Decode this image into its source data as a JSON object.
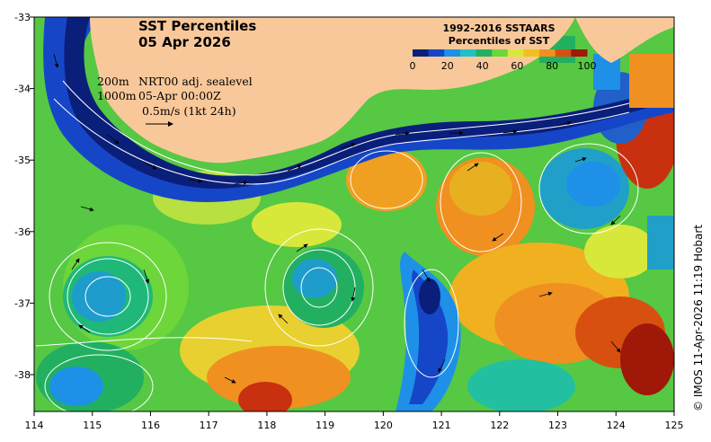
{
  "map": {
    "title_line1": "SST Percentiles",
    "title_line2": "05 Apr 2026",
    "info_line1_left": "200m",
    "info_line1_right": "NRT00 adj. sealevel",
    "info_line2_left": "1000m",
    "info_line2_right": "05-Apr 00:00Z",
    "info_line3": "0.5m/s (1kt 24h)",
    "credit": "© IMOS 11-Apr-2026 11:19 Hobart",
    "colors": {
      "land": "#f9c89a",
      "frame": "#000000",
      "contour": "#ffffff"
    }
  },
  "axes": {
    "x_ticks": [
      "114",
      "115",
      "116",
      "117",
      "118",
      "119",
      "120",
      "121",
      "122",
      "123",
      "124",
      "125"
    ],
    "y_ticks": [
      "-33",
      "-34",
      "-35",
      "-36",
      "-37",
      "-38"
    ]
  },
  "legend": {
    "title_line1": "1992-2016 SSTAARS",
    "title_line2": "Percentiles of SST",
    "ticks": [
      "0",
      "20",
      "40",
      "60",
      "80",
      "100"
    ],
    "colors": [
      "#0a1f7a",
      "#1646c8",
      "#1e90e8",
      "#20c0c8",
      "#22b060",
      "#6cd63a",
      "#d8e83a",
      "#f0c020",
      "#f09020",
      "#d85010",
      "#a01808"
    ]
  }
}
